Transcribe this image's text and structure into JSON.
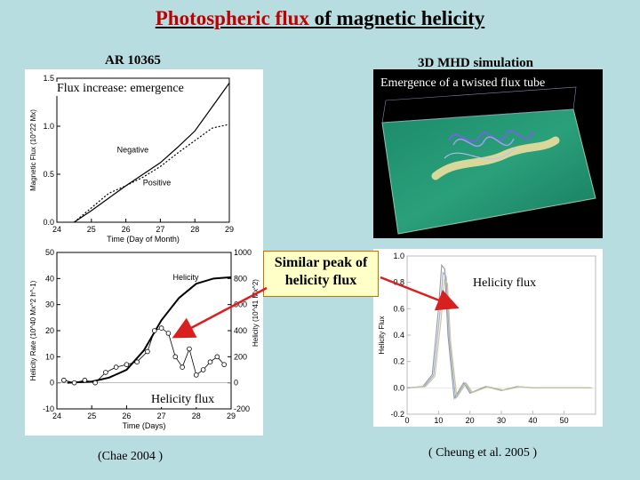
{
  "title": {
    "part1": "Photospheric flux ",
    "part2": "of magnetic helicity"
  },
  "labels": {
    "ar": "AR 10365",
    "mhd": "3D MHD simulation",
    "flux_increase": "Flux increase: emergence",
    "twisted": "Emergence of a twisted flux tube",
    "similar_peak": "Similar peak of helicity flux",
    "helicity_flux_left": "Helicity flux",
    "helicity_flux_right": "Helicity flux",
    "cite_left": "(Chae 2004 )",
    "cite_right": "( Cheung et al. 2005 )"
  },
  "colors": {
    "background": "#b8dde0",
    "title_red": "#c00000",
    "arrow": "#d82020",
    "callout_fill": "#ffffc8",
    "callout_border": "#d86c00"
  },
  "chart_data": [
    {
      "type": "line",
      "xlabel": "Time (Day of Month)",
      "ylabel": "Magnetic Flux (10^22 Mx)",
      "xlim": [
        24,
        29
      ],
      "ylim": [
        0,
        1.5
      ],
      "xticks": [
        "24",
        "25",
        "26",
        "27",
        "28",
        "29"
      ],
      "yticks": [
        "0.0",
        "0.5",
        "1.0",
        "1.5"
      ],
      "series": [
        {
          "name": "Negative",
          "style": "solid",
          "x": [
            24.5,
            25.0,
            25.5,
            26.0,
            26.5,
            27.0,
            27.5,
            28.0,
            28.5,
            29.0
          ],
          "y": [
            0.0,
            0.12,
            0.25,
            0.38,
            0.5,
            0.62,
            0.78,
            0.95,
            1.2,
            1.45
          ]
        },
        {
          "name": "Positive",
          "style": "dotted",
          "x": [
            24.5,
            25.0,
            25.5,
            26.0,
            26.5,
            27.0,
            27.5,
            28.0,
            28.5,
            29.0
          ],
          "y": [
            0.0,
            0.15,
            0.3,
            0.38,
            0.47,
            0.58,
            0.72,
            0.85,
            0.98,
            1.02
          ]
        }
      ]
    },
    {
      "type": "line",
      "xlabel": "Time (Days)",
      "ylabel": "Helicity Rate (10^40 Mx^2 h^-1)",
      "y2label": "Helicity (10^41 Mx^2)",
      "xlim": [
        24,
        29
      ],
      "ylim": [
        -10,
        50
      ],
      "y2lim": [
        -200,
        1000
      ],
      "xticks": [
        "24",
        "25",
        "26",
        "27",
        "28",
        "29"
      ],
      "yticks": [
        "-10",
        "0",
        "10",
        "20",
        "30",
        "40",
        "50"
      ],
      "y2ticks": [
        "-200",
        "0",
        "200",
        "400",
        "600",
        "800",
        "1000"
      ],
      "series": [
        {
          "name": "Helicity",
          "axis": "right",
          "x": [
            24.3,
            25.0,
            25.5,
            26.0,
            26.5,
            27.0,
            27.5,
            28.0,
            28.5,
            29.0
          ],
          "y": [
            0,
            10,
            40,
            100,
            250,
            480,
            650,
            760,
            800,
            810
          ]
        },
        {
          "name": "rate",
          "axis": "left",
          "markers": true,
          "x": [
            24.2,
            24.5,
            24.8,
            25.1,
            25.4,
            25.7,
            26.0,
            26.3,
            26.6,
            26.8,
            27.0,
            27.2,
            27.4,
            27.6,
            27.8,
            28.0,
            28.2,
            28.4,
            28.6,
            28.8
          ],
          "y": [
            1,
            0,
            1,
            0,
            4,
            6,
            7,
            8,
            12,
            20,
            21,
            19,
            10,
            6,
            13,
            3,
            5,
            8,
            10,
            7
          ]
        }
      ]
    },
    {
      "type": "line",
      "ylabel": "Helicity Flux",
      "xlim": [
        0,
        60
      ],
      "ylim": [
        -0.2,
        1.0
      ],
      "xticks": [
        "0",
        "10",
        "20",
        "30",
        "40",
        "50"
      ],
      "yticks": [
        "-0.2",
        "0.0",
        "0.2",
        "0.4",
        "0.6",
        "0.8",
        "1.0"
      ],
      "series": [
        {
          "x": [
            0,
            5,
            8,
            10,
            11,
            12,
            13,
            15,
            18,
            20,
            25,
            30,
            35,
            40,
            50,
            58
          ],
          "y": [
            0,
            0.01,
            0.1,
            0.6,
            0.93,
            0.9,
            0.4,
            -0.08,
            0.04,
            -0.04,
            0.01,
            -0.02,
            0.01,
            0,
            0,
            0
          ]
        }
      ]
    }
  ]
}
